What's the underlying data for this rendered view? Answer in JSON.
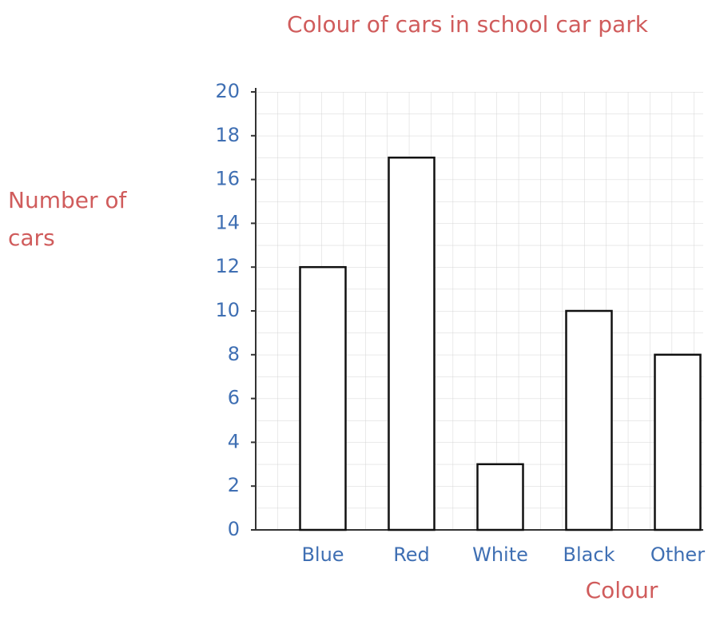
{
  "chart_data": {
    "type": "bar",
    "title": "Colour of cars in school car park",
    "y_label": [
      "Number of",
      "cars"
    ],
    "x_label": "Colour",
    "categories": [
      "Blue",
      "Red",
      "White",
      "Black",
      "Other"
    ],
    "values": [
      12,
      17,
      3,
      10,
      8
    ],
    "color": "#ffffff",
    "ylim": [
      0,
      20
    ],
    "yticks": [
      0,
      2,
      4,
      6,
      8,
      10,
      12,
      14,
      16,
      18,
      20
    ],
    "grid": true
  }
}
